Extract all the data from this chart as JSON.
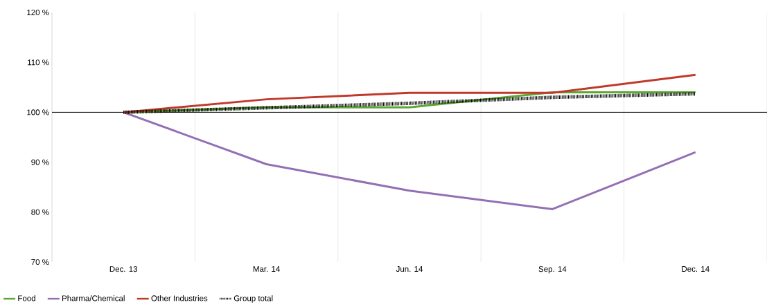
{
  "chart_data": {
    "type": "line",
    "categories": [
      "Dec. 13",
      "Mar. 14",
      "Jun. 14",
      "Sep. 14",
      "Dec. 14"
    ],
    "ylim": [
      70,
      120
    ],
    "yticks": [
      {
        "value": 70,
        "label": "70 %"
      },
      {
        "value": 80,
        "label": "80 %"
      },
      {
        "value": 90,
        "label": "90 %"
      },
      {
        "value": 100,
        "label": "100 %"
      },
      {
        "value": 110,
        "label": "110 %"
      },
      {
        "value": 120,
        "label": "120 %"
      }
    ],
    "grid": "x",
    "legend": "bottom",
    "marker": "none",
    "ref_lines": [
      {
        "axis": "y",
        "value": 100,
        "color": "#000000"
      }
    ],
    "series": [
      {
        "name": "Food",
        "color": "#5aaa32",
        "values": [
          100,
          101,
          101,
          104,
          104
        ]
      },
      {
        "name": "Pharma/Chemical",
        "color": "#9370b4",
        "values": [
          100,
          89.6,
          84.3,
          80.6,
          92
        ]
      },
      {
        "name": "Other Industries",
        "color": "#c0392b",
        "values": [
          100,
          102.6,
          103.9,
          103.9,
          107.5
        ]
      },
      {
        "name": "Group total",
        "color": "#000000",
        "line_style": "dotted",
        "values": [
          100,
          100.9,
          101.8,
          103,
          103.7
        ]
      }
    ]
  }
}
